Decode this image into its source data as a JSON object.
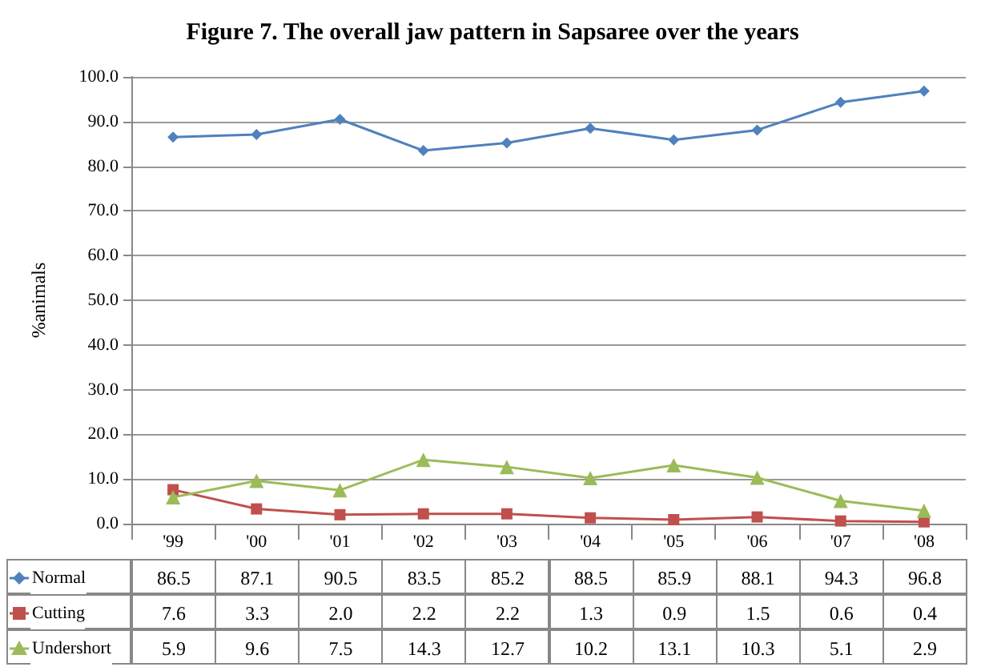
{
  "chart_data": {
    "type": "line",
    "title": "Figure 7. The overall jaw pattern in Sapsaree over the years",
    "ylabel": "%animals",
    "categories": [
      "'99",
      "'00",
      "'01",
      "'02",
      "'03",
      "'04",
      "'05",
      "'06",
      "'07",
      "'08"
    ],
    "series": [
      {
        "name": "Normal",
        "color": "#4f81bd",
        "marker": "diamond",
        "values": [
          86.5,
          87.1,
          90.5,
          83.5,
          85.2,
          88.5,
          85.9,
          88.1,
          94.3,
          96.8
        ]
      },
      {
        "name": "Cutting",
        "color": "#c0504d",
        "marker": "square",
        "values": [
          7.6,
          3.3,
          2.0,
          2.2,
          2.2,
          1.3,
          0.9,
          1.5,
          0.6,
          0.4
        ],
        "value_labels": [
          "7.6",
          "3.3",
          "2.0",
          "2.2",
          "2.2",
          "1.3",
          "0.9",
          "1.5",
          "0.6",
          "0.4"
        ]
      },
      {
        "name": "Undershort",
        "color": "#9bbb59",
        "marker": "triangle",
        "values": [
          5.9,
          9.6,
          7.5,
          14.3,
          12.7,
          10.2,
          13.1,
          10.3,
          5.1,
          2.9
        ]
      }
    ],
    "ylim": [
      0,
      100
    ],
    "yticks": [
      {
        "value": 0,
        "label": "0.0"
      },
      {
        "value": 10,
        "label": "10.0"
      },
      {
        "value": 20,
        "label": "20.0"
      },
      {
        "value": 30,
        "label": "30.0"
      },
      {
        "value": 40,
        "label": "40.0"
      },
      {
        "value": 50,
        "label": "50.0"
      },
      {
        "value": 60,
        "label": "60.0"
      },
      {
        "value": 70,
        "label": "70.0"
      },
      {
        "value": 80,
        "label": "80.0"
      },
      {
        "value": 90,
        "label": "90.0"
      },
      {
        "value": 100,
        "label": "100.0"
      }
    ],
    "grid": "y",
    "legend": "bottom",
    "data_labels": true
  }
}
